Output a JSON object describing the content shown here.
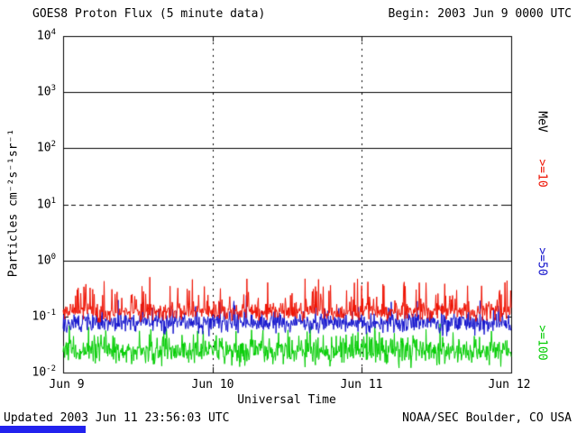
{
  "header": {
    "title": "GOES8 Proton Flux (5 minute data)",
    "begin_label": "Begin: 2003 Jun 9 0000 UTC"
  },
  "footer": {
    "updated": "Updated 2003 Jun 11 23:56:03 UTC",
    "source": "NOAA/SEC Boulder, CO USA"
  },
  "axis": {
    "ylabel": "Particles cm⁻²s⁻¹sr⁻¹",
    "xlabel": "Universal Time",
    "right_unit": "MeV"
  },
  "right_labels": [
    {
      "text": ">=10",
      "color": "#ee1100"
    },
    {
      "text": ">=50",
      "color": "#1111cc"
    },
    {
      "text": ">=100",
      "color": "#00cc00"
    }
  ],
  "chart_data": {
    "type": "line",
    "title": "GOES8 Proton Flux (5 minute data)",
    "xlabel": "Universal Time",
    "ylabel": "Particles cm-2 s-1 sr-1 (log scale)",
    "x_ticks": [
      "Jun 9",
      "Jun 10",
      "Jun 11",
      "Jun 12"
    ],
    "x_range_days": 3,
    "points_per_day": 288,
    "y_log_range": [
      -2,
      4
    ],
    "y_tick_exponents": [
      4,
      3,
      2,
      1,
      0,
      -1,
      -2
    ],
    "hlines": [
      {
        "exp": 3,
        "style": "solid"
      },
      {
        "exp": 2,
        "style": "solid"
      },
      {
        "exp": 1,
        "style": "dashed"
      },
      {
        "exp": 0,
        "style": "solid"
      }
    ],
    "vlines_at_days": [
      1,
      2
    ],
    "grid": "partial",
    "legend_position": "right-rotated",
    "series": [
      {
        "name": ">=10 MeV",
        "color": "#ee1100",
        "median_log": -0.92,
        "noise_log": 0.13,
        "spike_prob": 0.18,
        "spike_log": 0.55,
        "seed": 11,
        "summary": "noisy flux ~0.07-0.6 particles, median ~0.12"
      },
      {
        "name": ">=50 MeV",
        "color": "#1111cc",
        "median_log": -1.12,
        "noise_log": 0.14,
        "spike_prob": 0.1,
        "spike_log": 0.35,
        "seed": 22,
        "summary": "noisy flux ~0.04-0.25 particles, median ~0.08"
      },
      {
        "name": ">=100 MeV",
        "color": "#00cc00",
        "median_log": -1.62,
        "noise_log": 0.19,
        "spike_prob": 0.12,
        "spike_log": 0.35,
        "seed": 33,
        "summary": "noisy flux ~0.01-0.1 particles, median ~0.024, floor at 0.01"
      }
    ]
  }
}
